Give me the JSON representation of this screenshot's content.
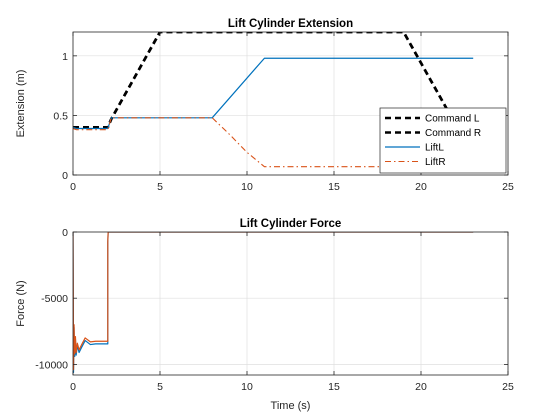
{
  "colors": {
    "command": "#000000",
    "lift_left": "#0072BD",
    "lift_right": "#D95319",
    "grid": "#DFDFDF",
    "axis": "#262626"
  },
  "chart_data": [
    {
      "type": "line",
      "title": "Lift Cylinder Extension",
      "xlabel": "",
      "ylabel": "Extension (m)",
      "xlim": [
        0,
        25
      ],
      "ylim": [
        0,
        1.2
      ],
      "xticks": [
        0,
        5,
        10,
        15,
        20,
        25
      ],
      "yticks": [
        0,
        0.5,
        1
      ],
      "xtick_labels": [
        "0",
        "5",
        "10",
        "15",
        "20",
        "25"
      ],
      "ytick_labels": [
        "0",
        "0.5",
        "1"
      ],
      "grid": true,
      "legend": "bottom-right",
      "series": [
        {
          "name": "Command L",
          "style": "dashed",
          "color": "#000000",
          "x": [
            0,
            2,
            2.2,
            5,
            19,
            21.5
          ],
          "y": [
            0.4,
            0.4,
            0.47,
            1.2,
            1.2,
            0.55
          ]
        },
        {
          "name": "Command R",
          "style": "dashed",
          "color": "#000000",
          "x": [
            0,
            2,
            2.2,
            5,
            19,
            21.5
          ],
          "y": [
            0.4,
            0.4,
            0.47,
            1.2,
            1.2,
            0.55
          ]
        },
        {
          "name": "LiftL",
          "style": "solid",
          "color": "#0072BD",
          "x": [
            0,
            0.2,
            2,
            2.2,
            8,
            11,
            23
          ],
          "y": [
            0.4,
            0.39,
            0.39,
            0.48,
            0.48,
            0.98,
            0.98
          ]
        },
        {
          "name": "LiftR",
          "style": "dashdot",
          "color": "#D95319",
          "x": [
            0,
            0.2,
            2,
            2.2,
            8,
            9,
            10,
            11,
            23
          ],
          "y": [
            0.39,
            0.38,
            0.38,
            0.48,
            0.48,
            0.34,
            0.19,
            0.07,
            0.07
          ]
        }
      ]
    },
    {
      "type": "line",
      "title": "Lift Cylinder Force",
      "xlabel": "Time (s)",
      "ylabel": "Force (N)",
      "xlim": [
        0,
        25
      ],
      "ylim": [
        -10800,
        0
      ],
      "xticks": [
        0,
        5,
        10,
        15,
        20,
        25
      ],
      "yticks": [
        -10000,
        -5000,
        0
      ],
      "xtick_labels": [
        "0",
        "5",
        "10",
        "15",
        "20",
        "25"
      ],
      "ytick_labels": [
        "-10000",
        "-5000",
        "0"
      ],
      "grid": true,
      "legend": "none",
      "series": [
        {
          "style": "solid",
          "color": "#0072BD",
          "x": [
            0,
            0.03,
            0.06,
            0.1,
            0.14,
            0.18,
            0.25,
            0.35,
            0.5,
            0.7,
            1.0,
            1.3,
            2.0,
            2.0,
            2.02,
            23
          ],
          "y": [
            0,
            -10600,
            -7200,
            -9400,
            -8100,
            -9300,
            -8600,
            -9100,
            -8700,
            -8200,
            -8500,
            -8450,
            -8450,
            -800,
            0,
            0
          ]
        },
        {
          "style": "solid",
          "color": "#D95319",
          "x": [
            0,
            0.03,
            0.06,
            0.1,
            0.14,
            0.18,
            0.25,
            0.35,
            0.5,
            0.7,
            1.0,
            1.3,
            2.0,
            2.0,
            2.02,
            23
          ],
          "y": [
            0,
            -10400,
            -7000,
            -9200,
            -7900,
            -9100,
            -8400,
            -8900,
            -8500,
            -8000,
            -8300,
            -8250,
            -8250,
            -700,
            0,
            0
          ]
        }
      ]
    }
  ]
}
